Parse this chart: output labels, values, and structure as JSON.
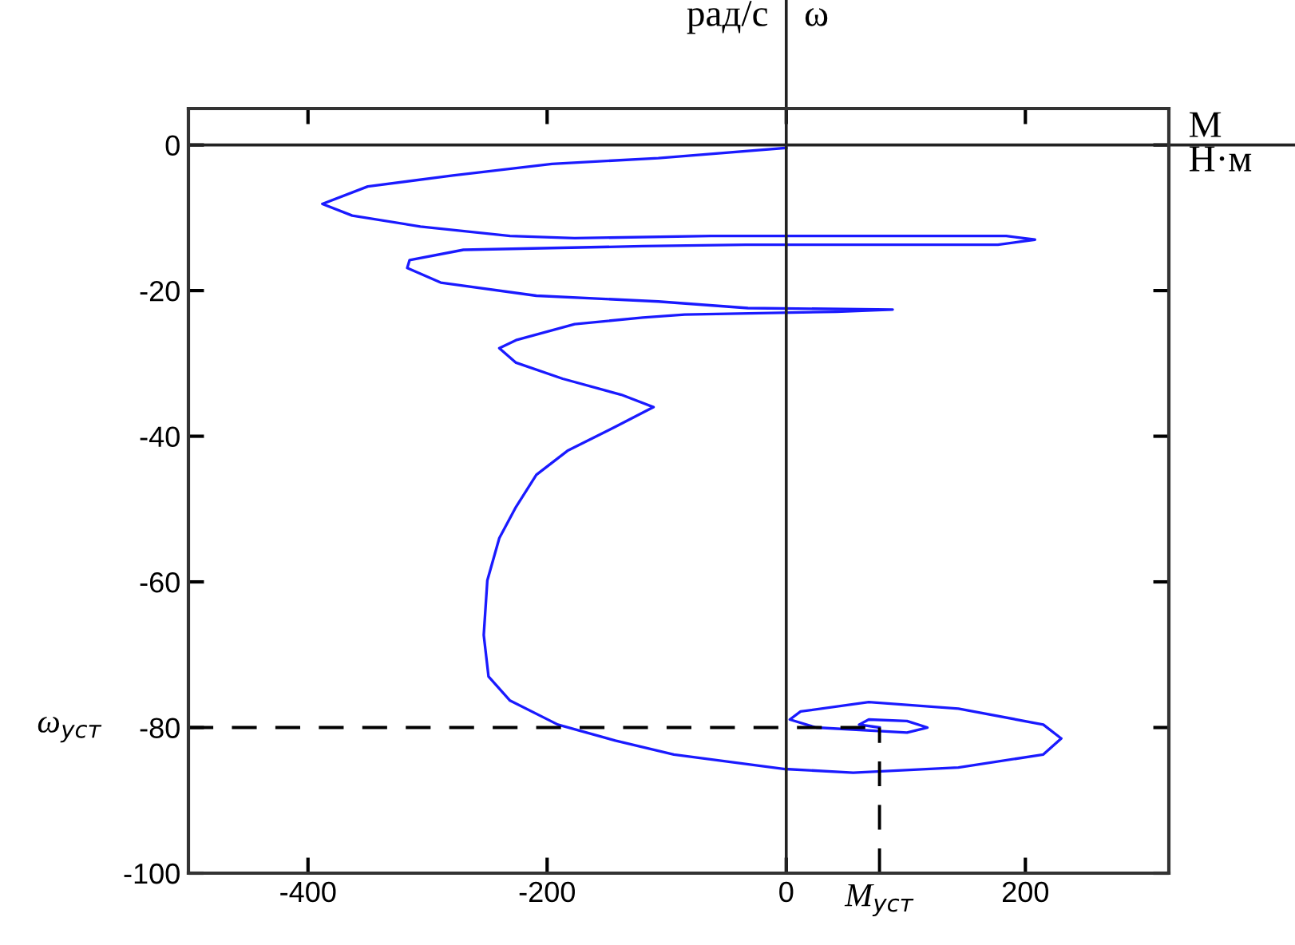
{
  "chart_data": {
    "type": "line",
    "xlabel": "M",
    "ylabel": "ω",
    "annotations": [
      "Н·м",
      "рад/с"
    ],
    "xlim": [
      -500,
      320
    ],
    "ylim": [
      -100,
      5
    ],
    "xticks": [
      -400,
      -200,
      0,
      200
    ],
    "yticks": [
      0,
      -20,
      -40,
      -60,
      -80,
      -100
    ],
    "marker": "none",
    "line_style": "solid",
    "ref_lines": [
      {
        "axis": "x",
        "value": 0,
        "color": "#222222",
        "line_style": "solid"
      },
      {
        "axis": "y",
        "value": 0,
        "color": "#222222",
        "line_style": "solid"
      },
      {
        "axis": "y",
        "value": -80,
        "label": "ω$_{уст}$",
        "line_style": "dashed",
        "color": "#000000"
      },
      {
        "axis": "x",
        "value": 78,
        "label": "M$_{уст}$",
        "line_style": "dashed",
        "color": "#000000"
      }
    ],
    "series": [
      {
        "color": "#1a1aff",
        "x": [
          0,
          -107,
          -196,
          -279,
          -350,
          -388,
          -363,
          -306,
          -231,
          -177,
          -63,
          184,
          208,
          177,
          -34,
          -120,
          -270,
          -315,
          -317,
          -289,
          -209,
          -107,
          -32,
          89,
          42,
          -85,
          -120,
          -177,
          -226,
          -240,
          -226,
          -187,
          -138,
          -111,
          -143,
          -183,
          -209,
          -226,
          -240,
          -250,
          -253,
          -249,
          -231,
          -191,
          -143,
          -94,
          -1,
          56,
          144,
          215,
          230,
          215,
          144,
          69,
          12,
          3,
          25,
          101,
          118,
          101,
          69,
          61,
          78
        ],
        "values": [
          -0.4,
          -1.8,
          -2.6,
          -4.2,
          -5.7,
          -8.1,
          -9.7,
          -11.2,
          -12.5,
          -12.8,
          -12.5,
          -12.5,
          -13,
          -13.7,
          -13.7,
          -13.9,
          -14.4,
          -15.8,
          -16.9,
          -18.9,
          -20.7,
          -21.5,
          -22.4,
          -22.6,
          -22.9,
          -23.3,
          -23.7,
          -24.6,
          -26.8,
          -27.9,
          -29.9,
          -32.1,
          -34.3,
          -36,
          -38.7,
          -42,
          -45.3,
          -49.7,
          -54,
          -59.8,
          -67.3,
          -73,
          -76.3,
          -79.6,
          -81.8,
          -83.7,
          -85.7,
          -86.2,
          -85.5,
          -83.7,
          -81.5,
          -79.6,
          -77.4,
          -76.5,
          -77.8,
          -78.9,
          -80,
          -80.7,
          -80,
          -79.1,
          -78.9,
          -79.6,
          -80
        ]
      }
    ]
  }
}
